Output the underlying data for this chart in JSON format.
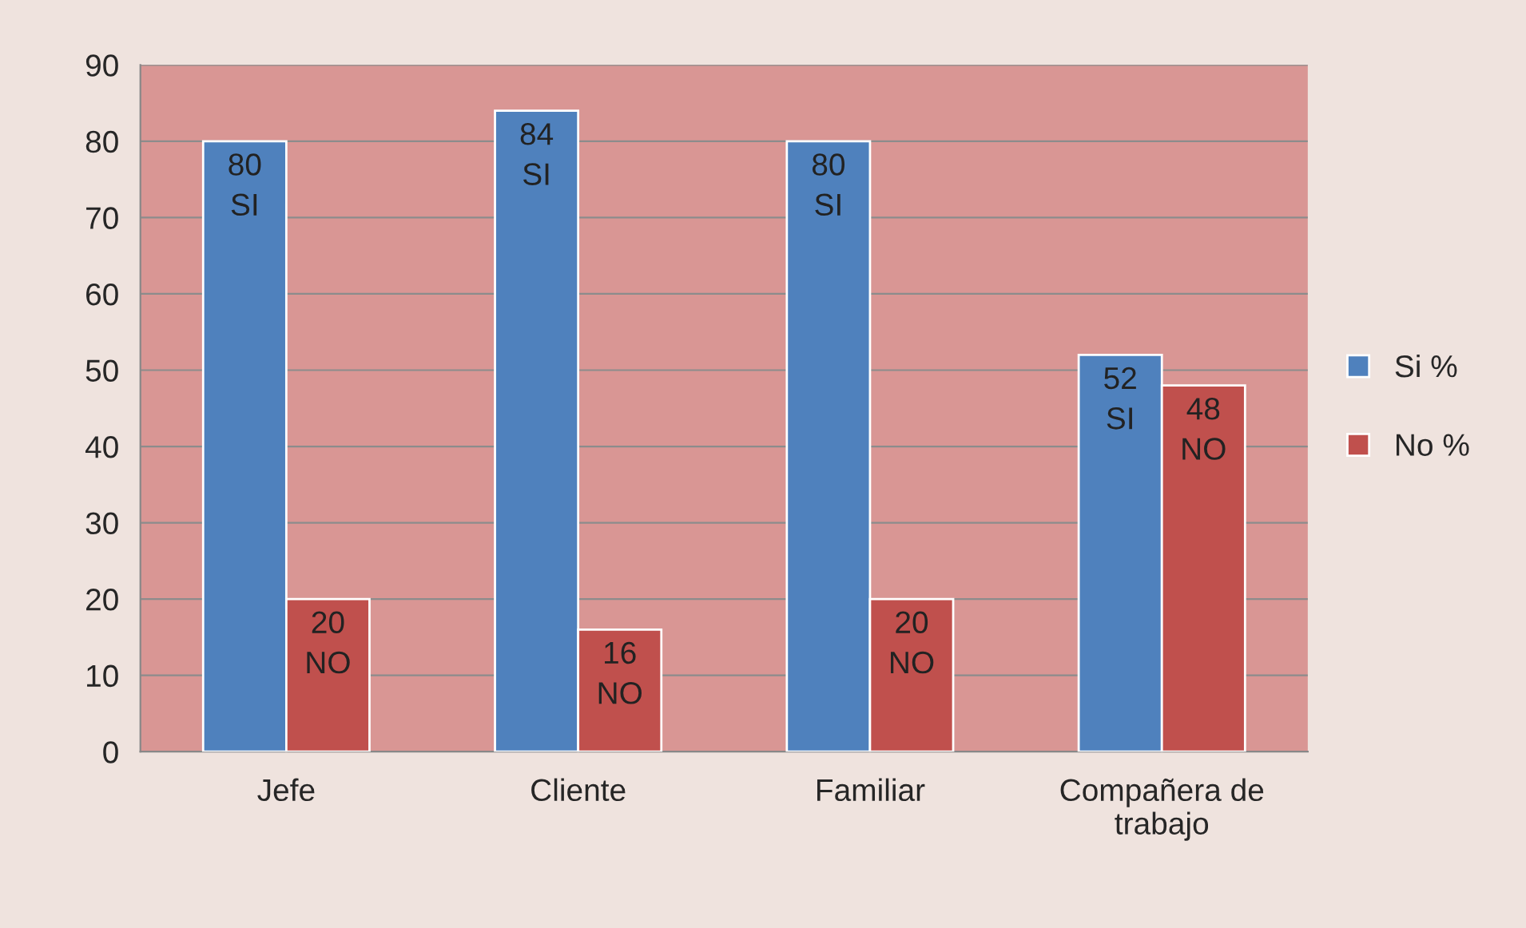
{
  "chart_data": {
    "type": "bar",
    "categories": [
      "Jefe",
      "Cliente",
      "Familiar",
      "Compañera de\ntrabajo"
    ],
    "series": [
      {
        "name": "Si %",
        "color": "#4f81bd",
        "values": [
          80,
          84,
          80,
          52
        ],
        "value_labels": [
          "80\nSI",
          "84\nSI",
          "80\nSI",
          "52\nSI"
        ]
      },
      {
        "name": "No %",
        "color": "#c0504d",
        "values": [
          20,
          16,
          20,
          48
        ],
        "value_labels": [
          "20\nNO",
          "16\nNO",
          "20\nNO",
          "48\nNO"
        ]
      }
    ],
    "ylim": [
      0,
      90
    ],
    "yticks": [
      0,
      10,
      20,
      30,
      40,
      50,
      60,
      70,
      80,
      90
    ],
    "grid": "y",
    "legend": "right"
  }
}
